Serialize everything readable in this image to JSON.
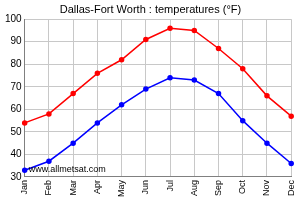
{
  "chart_data": {
    "type": "line",
    "title": "Dallas-Fort Worth : temperatures (°F)",
    "categories": [
      "Jan",
      "Feb",
      "Mar",
      "Apr",
      "May",
      "Jun",
      "Jul",
      "Aug",
      "Sep",
      "Oct",
      "Nov",
      "Dec"
    ],
    "series": [
      {
        "color": "#ff0000",
        "values": [
          54,
          58,
          67,
          76,
          82,
          91,
          96,
          95,
          87,
          78,
          66,
          57
        ]
      },
      {
        "color": "#0000ff",
        "values": [
          33,
          37,
          45,
          54,
          62,
          69,
          74,
          73,
          67,
          55,
          45,
          36
        ]
      }
    ],
    "ylim": [
      30,
      100
    ],
    "yticks": [
      30,
      40,
      50,
      60,
      70,
      80,
      90,
      100
    ],
    "grid": true,
    "marker": "circle",
    "annotation": "www.allmetsat.com"
  }
}
